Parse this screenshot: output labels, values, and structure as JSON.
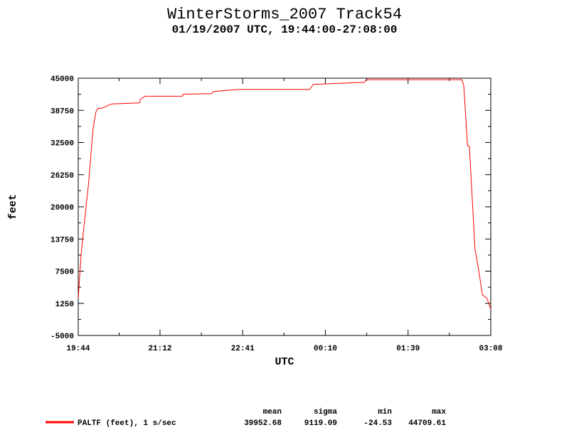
{
  "chart_data": {
    "type": "line",
    "title": "WinterStorms_2007 Track54",
    "subtitle": "01/19/2007 UTC, 19:44:00-27:08:00",
    "x_label": "UTC",
    "y_label": "feet",
    "x": [
      "19:44",
      "19:47",
      "19:50",
      "19:55",
      "20:00",
      "20:03",
      "20:05",
      "20:10",
      "20:20",
      "20:50",
      "20:51",
      "20:56",
      "21:36",
      "21:37",
      "22:08",
      "22:09",
      "22:35",
      "23:53",
      "23:57",
      "00:52",
      "00:54",
      "02:37",
      "02:39",
      "02:43",
      "02:45",
      "02:51",
      "02:55",
      "02:59",
      "03:04",
      "03:08"
    ],
    "series": [
      {
        "name": "PALTF (feet), 1 s/sec",
        "color": "#ff0000",
        "values": [
          2200,
          10500,
          16000,
          24300,
          35300,
          38400,
          39100,
          39200,
          40000,
          40200,
          40900,
          41500,
          41500,
          41900,
          42000,
          42400,
          42800,
          42800,
          43800,
          44200,
          44700,
          44700,
          43500,
          31900,
          31800,
          11800,
          7700,
          2900,
          2200,
          100
        ]
      }
    ],
    "xlim": [
      "19:44",
      "03:08"
    ],
    "xticks": [
      "19:44",
      "21:12",
      "22:41",
      "00:10",
      "01:39",
      "03:08"
    ],
    "ylim": [
      -5000,
      45000
    ],
    "yticks": [
      -5000,
      1250,
      7500,
      13750,
      20000,
      26250,
      32500,
      38750,
      45000
    ],
    "stats": {
      "headers": [
        "mean",
        "sigma",
        "min",
        "max"
      ],
      "values": [
        "39952.68",
        "9119.09",
        "-24.53",
        "44709.61"
      ]
    }
  }
}
